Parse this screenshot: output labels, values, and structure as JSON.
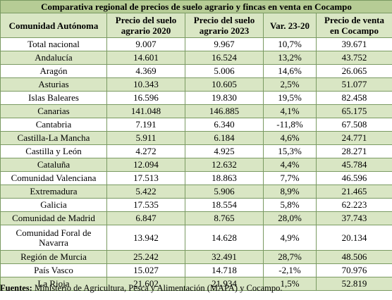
{
  "title": "Comparativa regional de precios de suelo agrario y fincas en venta en Cocampo",
  "headers": [
    "Comunidad Autónoma",
    "Precio del suelo agrario 2020",
    "Precio del suelo agrario 2023",
    "Var. 23-20",
    "Precio de venta en Cocampo"
  ],
  "rows": [
    [
      "Total nacional",
      "9.007",
      "9.967",
      "10,7%",
      "39.671"
    ],
    [
      "Andalucía",
      "14.601",
      "16.524",
      "13,2%",
      "43.752"
    ],
    [
      "Aragón",
      "4.369",
      "5.006",
      "14,6%",
      "26.065"
    ],
    [
      "Asturias",
      "10.343",
      "10.605",
      "2,5%",
      "51.077"
    ],
    [
      "Islas Baleares",
      "16.596",
      "19.830",
      "19,5%",
      "82.458"
    ],
    [
      "Canarias",
      "141.048",
      "146.885",
      "4,1%",
      "65.175"
    ],
    [
      "Cantabria",
      "7.191",
      "6.340",
      "-11,8%",
      "67.508"
    ],
    [
      "Castilla-La Mancha",
      "5.911",
      "6.184",
      "4,6%",
      "24.771"
    ],
    [
      "Castilla y León",
      "4.272",
      "4.925",
      "15,3%",
      "28.271"
    ],
    [
      "Cataluña",
      "12.094",
      "12.632",
      "4,4%",
      "45.784"
    ],
    [
      "Comunidad Valenciana",
      "17.513",
      "18.863",
      "7,7%",
      "46.596"
    ],
    [
      "Extremadura",
      "5.422",
      "5.906",
      "8,9%",
      "21.465"
    ],
    [
      "Galicia",
      "17.535",
      "18.554",
      "5,8%",
      "62.223"
    ],
    [
      "Comunidad de Madrid",
      "6.847",
      "8.765",
      "28,0%",
      "37.743"
    ],
    [
      "Comunidad Foral de Navarra",
      "13.942",
      "14.628",
      "4,9%",
      "20.134"
    ],
    [
      "Región de Murcia",
      "25.242",
      "32.491",
      "28,7%",
      "48.506"
    ],
    [
      "País Vasco",
      "15.027",
      "14.718",
      "-2,1%",
      "70.976"
    ],
    [
      "La Rioja",
      "21.602",
      "21.934",
      "1,5%",
      "52.819"
    ]
  ],
  "source": {
    "label": "Fuentes:",
    "text": " Ministerio de Agricultura, Pesca y Alimentación (MAPA) y Cocampo."
  },
  "colors": {
    "title_bg": "#b6cc95",
    "stripe_bg": "#d9e6c4",
    "border": "#7a9a62"
  }
}
